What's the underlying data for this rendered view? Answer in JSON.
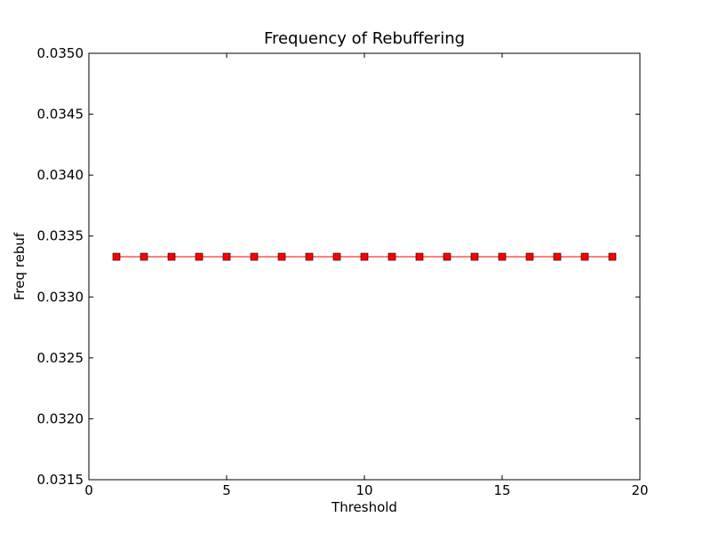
{
  "chart_data": {
    "type": "line",
    "title": "Frequency of Rebuffering",
    "xlabel": "Threshold",
    "ylabel": "Freq rebuf",
    "xlim": [
      0,
      20
    ],
    "ylim": [
      0.0315,
      0.035
    ],
    "xticks": [
      "0",
      "5",
      "10",
      "15",
      "20"
    ],
    "yticks": [
      "0.0315",
      "0.0320",
      "0.0325",
      "0.0330",
      "0.0335",
      "0.0340",
      "0.0345",
      "0.0350"
    ],
    "grid": false,
    "series": [
      {
        "color": "#ff0000",
        "marker": "square",
        "x": [
          1,
          2,
          3,
          4,
          5,
          6,
          7,
          8,
          9,
          10,
          11,
          12,
          13,
          14,
          15,
          16,
          17,
          18,
          19
        ],
        "y": [
          0.03333,
          0.03333,
          0.03333,
          0.03333,
          0.03333,
          0.03333,
          0.03333,
          0.03333,
          0.03333,
          0.03333,
          0.03333,
          0.03333,
          0.03333,
          0.03333,
          0.03333,
          0.03333,
          0.03333,
          0.03333,
          0.03333
        ]
      }
    ]
  }
}
